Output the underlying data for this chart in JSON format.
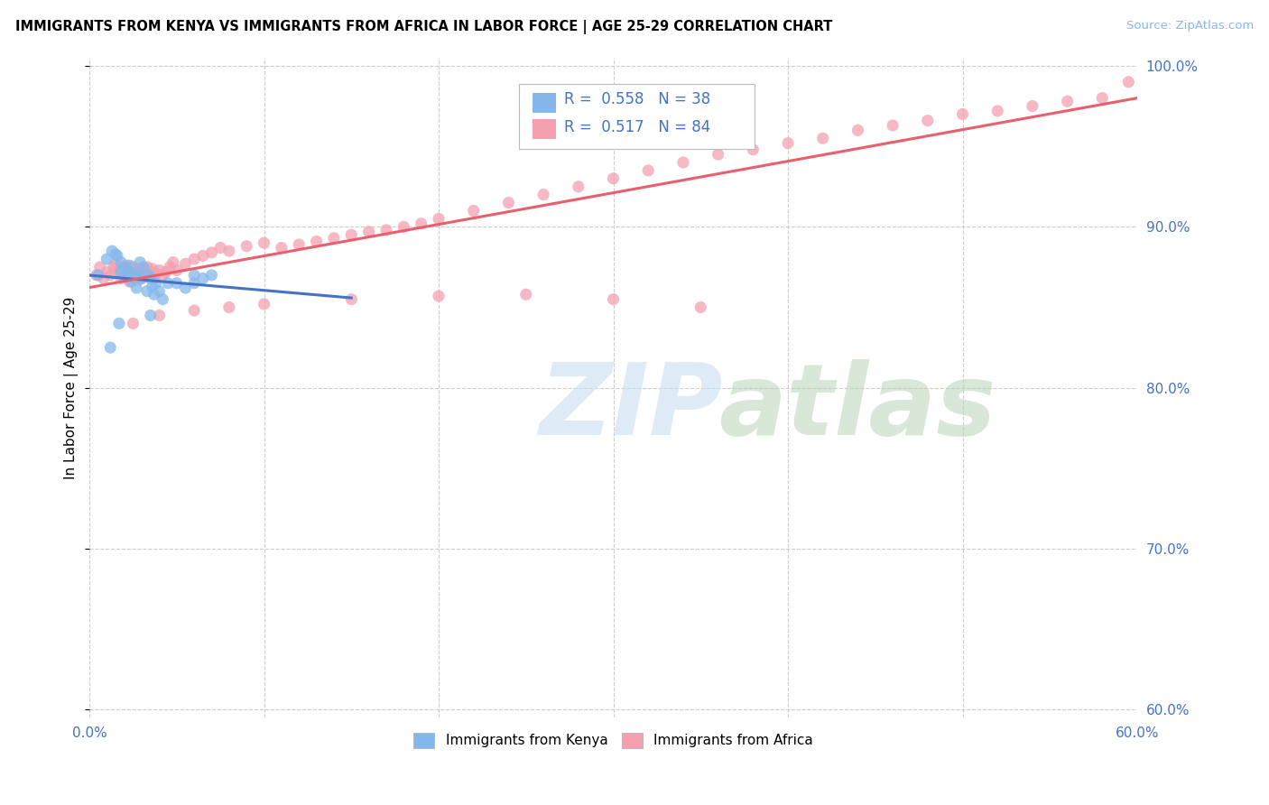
{
  "title": "IMMIGRANTS FROM KENYA VS IMMIGRANTS FROM AFRICA IN LABOR FORCE | AGE 25-29 CORRELATION CHART",
  "source": "Source: ZipAtlas.com",
  "ylabel": "In Labor Force | Age 25-29",
  "xlim": [
    0.0,
    0.6
  ],
  "ylim": [
    0.595,
    1.005
  ],
  "xticks": [
    0.0,
    0.1,
    0.2,
    0.3,
    0.4,
    0.5,
    0.6
  ],
  "xticklabels": [
    "0.0%",
    "",
    "",
    "",
    "",
    "",
    "60.0%"
  ],
  "yticks": [
    0.6,
    0.7,
    0.8,
    0.9,
    1.0
  ],
  "yticklabels": [
    "60.0%",
    "70.0%",
    "80.0%",
    "90.0%",
    "100.0%"
  ],
  "kenya_color": "#85b8ea",
  "africa_color": "#f4a0b0",
  "kenya_line_color": "#4472c4",
  "africa_line_color": "#e8606e",
  "kenya_x": [
    0.005,
    0.01,
    0.013,
    0.015,
    0.016,
    0.018,
    0.018,
    0.02,
    0.02,
    0.022,
    0.022,
    0.023,
    0.024,
    0.025,
    0.026,
    0.027,
    0.028,
    0.029,
    0.03,
    0.031,
    0.033,
    0.034,
    0.035,
    0.036,
    0.037,
    0.038,
    0.04,
    0.042,
    0.045,
    0.05,
    0.055,
    0.06,
    0.065,
    0.07,
    0.012,
    0.017,
    0.035,
    0.06
  ],
  "kenya_y": [
    0.87,
    0.88,
    0.885,
    0.883,
    0.882,
    0.878,
    0.872,
    0.875,
    0.869,
    0.87,
    0.873,
    0.876,
    0.866,
    0.872,
    0.868,
    0.862,
    0.87,
    0.878,
    0.868,
    0.875,
    0.86,
    0.87,
    0.868,
    0.863,
    0.858,
    0.865,
    0.86,
    0.855,
    0.865,
    0.865,
    0.862,
    0.865,
    0.868,
    0.87,
    0.825,
    0.84,
    0.845,
    0.87
  ],
  "africa_x": [
    0.004,
    0.006,
    0.008,
    0.01,
    0.012,
    0.014,
    0.015,
    0.016,
    0.017,
    0.018,
    0.019,
    0.02,
    0.021,
    0.022,
    0.023,
    0.024,
    0.025,
    0.026,
    0.027,
    0.028,
    0.029,
    0.03,
    0.031,
    0.032,
    0.033,
    0.034,
    0.035,
    0.036,
    0.037,
    0.038,
    0.04,
    0.042,
    0.044,
    0.046,
    0.048,
    0.05,
    0.055,
    0.06,
    0.065,
    0.07,
    0.075,
    0.08,
    0.09,
    0.1,
    0.11,
    0.12,
    0.13,
    0.14,
    0.15,
    0.16,
    0.17,
    0.18,
    0.19,
    0.2,
    0.22,
    0.24,
    0.26,
    0.28,
    0.3,
    0.32,
    0.34,
    0.36,
    0.38,
    0.4,
    0.42,
    0.44,
    0.46,
    0.48,
    0.5,
    0.52,
    0.54,
    0.56,
    0.58,
    0.595,
    0.025,
    0.04,
    0.06,
    0.08,
    0.1,
    0.15,
    0.2,
    0.25,
    0.3,
    0.35
  ],
  "africa_y": [
    0.87,
    0.875,
    0.868,
    0.872,
    0.87,
    0.875,
    0.877,
    0.872,
    0.873,
    0.868,
    0.874,
    0.869,
    0.876,
    0.871,
    0.866,
    0.872,
    0.875,
    0.869,
    0.873,
    0.867,
    0.874,
    0.868,
    0.872,
    0.87,
    0.875,
    0.869,
    0.872,
    0.874,
    0.869,
    0.871,
    0.873,
    0.87,
    0.872,
    0.875,
    0.878,
    0.873,
    0.877,
    0.88,
    0.882,
    0.884,
    0.887,
    0.885,
    0.888,
    0.89,
    0.887,
    0.889,
    0.891,
    0.893,
    0.895,
    0.897,
    0.898,
    0.9,
    0.902,
    0.905,
    0.91,
    0.915,
    0.92,
    0.925,
    0.93,
    0.935,
    0.94,
    0.945,
    0.948,
    0.952,
    0.955,
    0.96,
    0.963,
    0.966,
    0.97,
    0.972,
    0.975,
    0.978,
    0.98,
    0.99,
    0.84,
    0.845,
    0.848,
    0.85,
    0.852,
    0.855,
    0.857,
    0.858,
    0.855,
    0.85
  ]
}
